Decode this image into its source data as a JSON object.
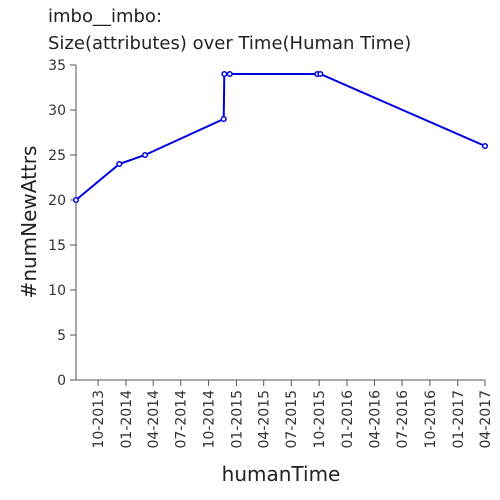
{
  "chart_data": {
    "type": "line",
    "title": "imbo__imbo:",
    "subtitle": "Size(attributes) over Time(Human Time)",
    "xlabel": "humanTime",
    "ylabel": "#numNewAttrs",
    "ylim": [
      0,
      35
    ],
    "yticks": [
      0,
      5,
      10,
      15,
      20,
      25,
      30,
      35
    ],
    "xlim": [
      "2013-07-20",
      "2017-04-01"
    ],
    "xticks": [
      "10-2013",
      "01-2014",
      "04-2014",
      "07-2014",
      "10-2014",
      "01-2015",
      "04-2015",
      "07-2015",
      "10-2015",
      "01-2016",
      "04-2016",
      "07-2016",
      "10-2016",
      "01-2017",
      "04-2017"
    ],
    "grid": false,
    "color": "#0000dd",
    "series": [
      {
        "points": [
          {
            "x": "2013-07-20",
            "y": 20
          },
          {
            "x": "2013-12-10",
            "y": 24
          },
          {
            "x": "2014-03-05",
            "y": 25
          },
          {
            "x": "2014-11-20",
            "y": 29
          },
          {
            "x": "2014-11-22",
            "y": 34
          },
          {
            "x": "2014-12-10",
            "y": 34
          },
          {
            "x": "2015-09-25",
            "y": 34
          },
          {
            "x": "2015-10-05",
            "y": 34
          },
          {
            "x": "2017-04-01",
            "y": 26
          }
        ]
      }
    ]
  }
}
